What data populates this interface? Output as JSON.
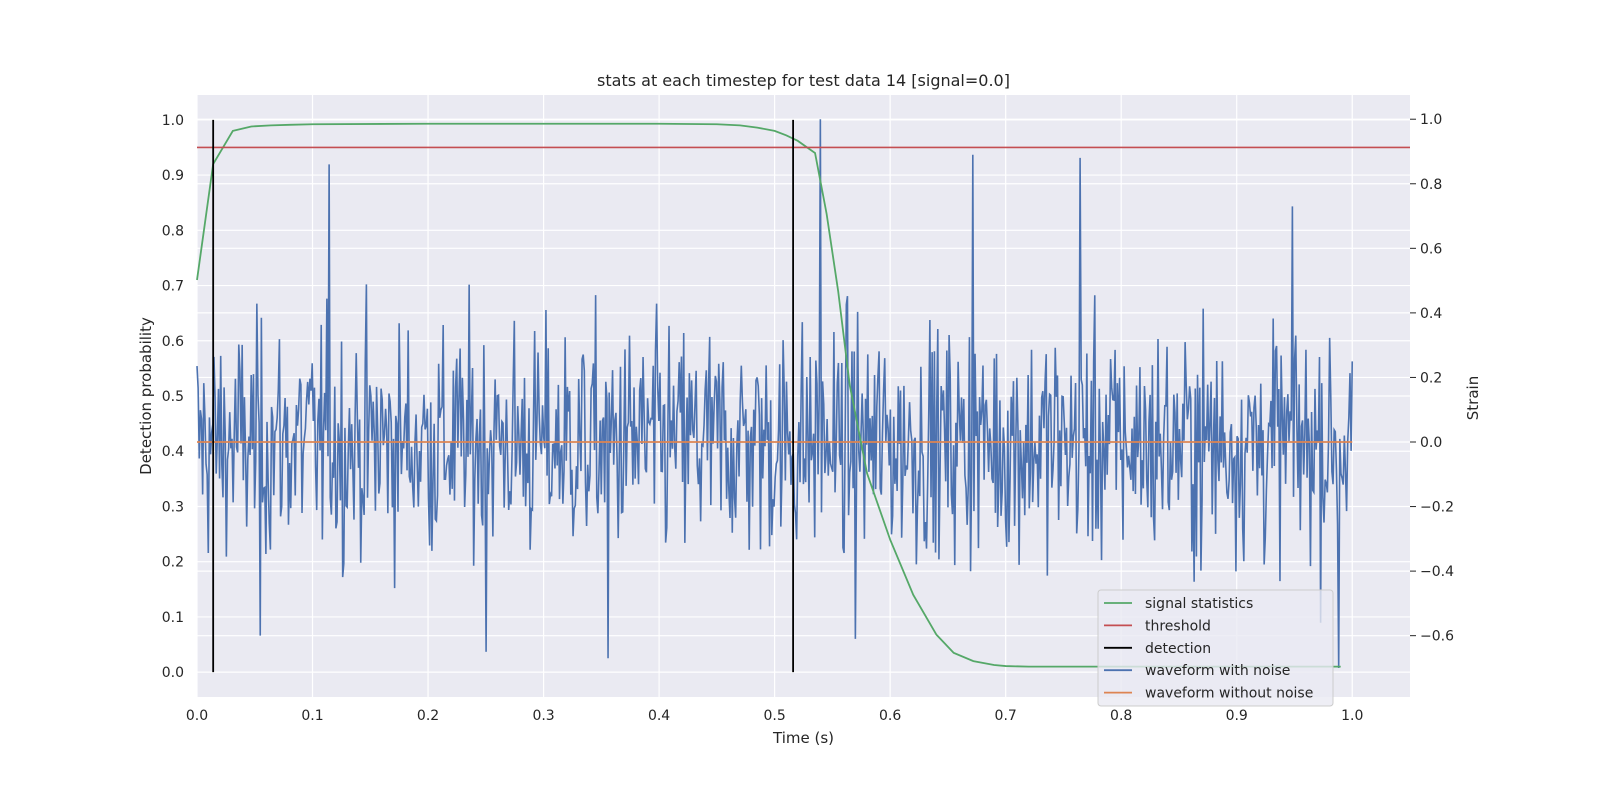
{
  "chart_data": {
    "type": "line",
    "title": "stats at each timestep for test data 14 [signal=0.0]",
    "xlabel": "Time (s)",
    "ylabel_left": "Detection probability",
    "ylabel_right": "Strain",
    "xlim": [
      0.0,
      1.05
    ],
    "ylim_left": [
      -0.045,
      1.045
    ],
    "ylim_right": [
      -0.79,
      1.075
    ],
    "x_ticks": [
      "0.0",
      "0.1",
      "0.2",
      "0.3",
      "0.4",
      "0.5",
      "0.6",
      "0.7",
      "0.8",
      "0.9",
      "1.0"
    ],
    "y_ticks_left": [
      "0.0",
      "0.1",
      "0.2",
      "0.3",
      "0.4",
      "0.5",
      "0.6",
      "0.7",
      "0.8",
      "0.9",
      "1.0"
    ],
    "y_ticks_right": [
      "−0.6",
      "−0.4",
      "−0.2",
      "0.0",
      "0.2",
      "0.4",
      "0.6",
      "0.8",
      "1.0"
    ],
    "grid": true,
    "legend_position": "bottom-right",
    "series": [
      {
        "name": "signal statistics",
        "axis": "left",
        "color": "#55a868",
        "x": [
          0.0,
          0.014,
          0.031,
          0.047,
          0.064,
          0.08,
          0.1,
          0.2,
          0.3,
          0.4,
          0.45,
          0.47,
          0.485,
          0.5,
          0.51,
          0.52,
          0.535,
          0.545,
          0.555,
          0.565,
          0.58,
          0.6,
          0.62,
          0.64,
          0.655,
          0.672,
          0.69,
          0.7,
          0.72,
          0.75,
          0.8,
          0.85,
          0.9,
          0.95,
          0.99
        ],
        "y": [
          0.71,
          0.92,
          0.98,
          0.988,
          0.99,
          0.991,
          0.992,
          0.993,
          0.993,
          0.993,
          0.992,
          0.99,
          0.986,
          0.98,
          0.972,
          0.962,
          0.94,
          0.83,
          0.69,
          0.52,
          0.36,
          0.24,
          0.14,
          0.068,
          0.035,
          0.02,
          0.013,
          0.011,
          0.01,
          0.01,
          0.01,
          0.01,
          0.01,
          0.01,
          0.01
        ]
      },
      {
        "name": "threshold",
        "axis": "left",
        "color": "#c44e52",
        "x": [
          0.0,
          1.05
        ],
        "y": [
          0.95,
          0.95
        ]
      },
      {
        "name": "waveform with noise",
        "axis": "right",
        "color": "#4c72b0",
        "noise_samples": 1024,
        "noise_spikes": [
          {
            "x": 0.114,
            "y": 0.86
          },
          {
            "x": 0.54,
            "y": 1.0
          },
          {
            "x": 0.672,
            "y": 0.89
          },
          {
            "x": 0.764,
            "y": 0.88
          },
          {
            "x": 0.948,
            "y": 0.73
          },
          {
            "x": 0.25,
            "y": -0.65
          },
          {
            "x": 0.356,
            "y": -0.67
          },
          {
            "x": 0.988,
            "y": -0.7
          },
          {
            "x": 0.055,
            "y": -0.6
          },
          {
            "x": 0.57,
            "y": -0.61
          }
        ]
      },
      {
        "name": "waveform without noise",
        "axis": "right",
        "color": "#dd8452",
        "x": [
          0.0,
          1.0
        ],
        "y": [
          0.0,
          0.0
        ]
      }
    ],
    "detections": {
      "name": "detection",
      "color": "#000000",
      "x": [
        0.014,
        0.516
      ],
      "y_range": [
        0.0,
        1.0
      ]
    }
  }
}
